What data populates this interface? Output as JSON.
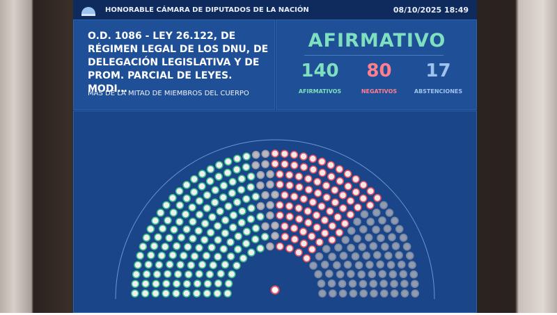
{
  "header": {
    "chamber": "HONORABLE CÁMARA DE DIPUTADOS DE LA NACIÓN",
    "datetime": "08/10/2025 18:49"
  },
  "motion": {
    "title_lines": [
      "O.D. 1086 - LEY 26.122, DE",
      "RÉGIMEN LEGAL DE LOS DNU, DE",
      "DELEGACIÓN LEGISLATIVA Y DE",
      "PROM. PARCIAL DE LEYES. MODI…"
    ],
    "majority": "MÁS DE LA MITAD DE MIEMBROS DEL CUERPO"
  },
  "result": "AFIRMATIVO",
  "tallies": [
    {
      "count": 140,
      "label": "AFIRMATIVOS"
    },
    {
      "count": 80,
      "label": "NEGATIVOS"
    },
    {
      "count": 17,
      "label": "ABSTENCIONES"
    }
  ]
}
